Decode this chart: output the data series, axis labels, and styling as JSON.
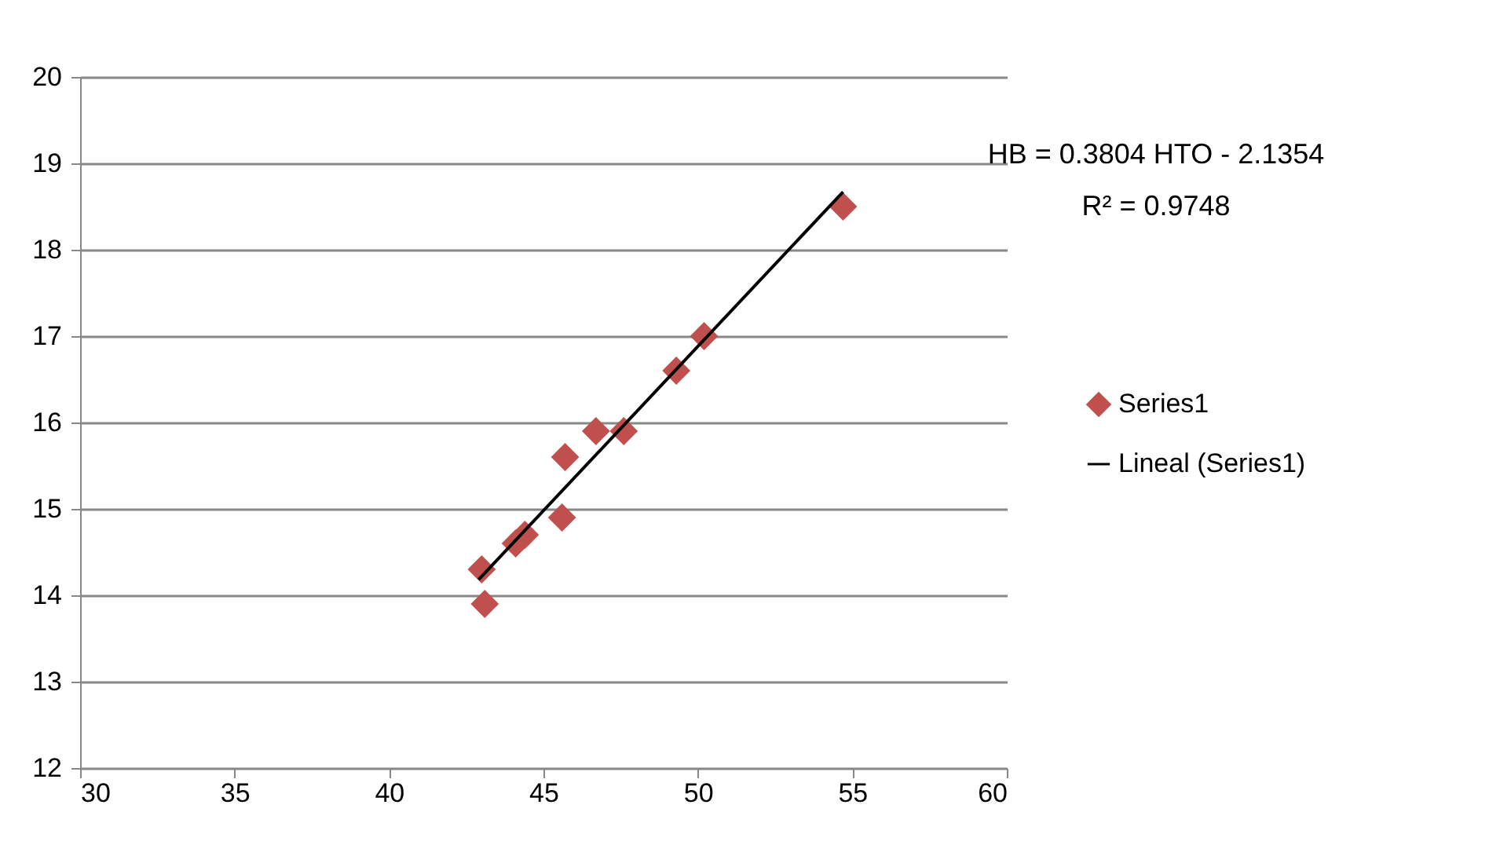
{
  "chart_data": {
    "type": "scatter",
    "grid": "y",
    "legend": "right",
    "xlim": [
      30,
      60
    ],
    "xticks": [
      30,
      35,
      40,
      45,
      50,
      55,
      60
    ],
    "ylim": [
      12,
      20
    ],
    "yticks": [
      12,
      13,
      14,
      15,
      16,
      17,
      18,
      19,
      20
    ],
    "annotations": [
      "HB = 0.3804 HTO - 2.1354",
      "R² = 0.9748"
    ],
    "series": [
      {
        "name": "Series1",
        "color": "#c0504d",
        "marker": "diamond",
        "x": [
          43.0,
          43.1,
          44.1,
          44.4,
          45.6,
          45.7,
          46.7,
          47.6,
          49.3,
          50.2,
          54.7
        ],
        "values": [
          14.3,
          13.9,
          14.6,
          14.7,
          14.9,
          15.6,
          15.9,
          15.9,
          16.6,
          17.0,
          18.5
        ]
      },
      {
        "name": "Lineal (Series1)",
        "type": "line",
        "line_style": "solid",
        "marker": "none",
        "color": "#000000",
        "x": [
          42.9,
          54.7
        ],
        "values": [
          14.18,
          18.67
        ]
      }
    ]
  }
}
